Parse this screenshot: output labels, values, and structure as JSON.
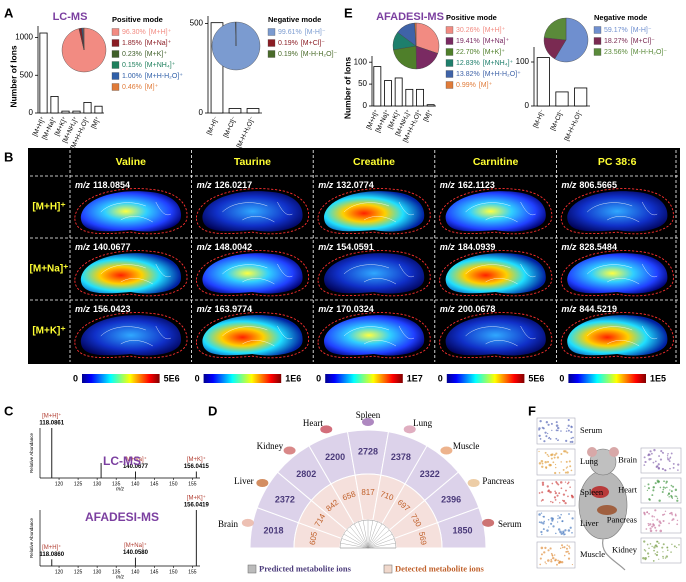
{
  "panel_labels": [
    "A",
    "B",
    "C",
    "D",
    "E",
    "F"
  ],
  "chart_data": [
    {
      "type": "bar",
      "title": "LC-MS",
      "title_color": "#7b3fa0",
      "ylabel": "Number of Ions",
      "legend_title": "Positive mode",
      "categories": [
        "[M+H]⁺",
        "[M+Na]⁺",
        "[M+K]⁺",
        "[M+NH₄]⁺",
        "[M+H-H₂O]⁺",
        "[M]⁺"
      ],
      "values": [
        1060,
        220,
        25,
        25,
        140,
        90
      ],
      "ylim": [
        0,
        1100
      ],
      "yticks": [
        0,
        500,
        1000
      ],
      "bar_color": "#ffffff",
      "shares": [
        96.3,
        1.85,
        0.23,
        0.15,
        1.0,
        0.46
      ],
      "share_labels": [
        "96.30%",
        "1.85%",
        "0.23%",
        "0.15%",
        "1.00%",
        "0.46%"
      ],
      "colors": [
        "#f28b82",
        "#8b1c24",
        "#3f5f2a",
        "#1e7f5c",
        "#2f5fa8",
        "#e07b39"
      ]
    },
    {
      "type": "bar",
      "legend_title": "Negative mode",
      "categories": [
        "[M-H]⁻",
        "[M+Cl]⁻",
        "[M-H-H₂O]⁻"
      ],
      "values": [
        505,
        25,
        25
      ],
      "ylim": [
        0,
        520
      ],
      "yticks": [
        0,
        500
      ],
      "bar_color": "#ffffff",
      "shares": [
        99.61,
        0.19,
        0.19
      ],
      "share_labels": [
        "99.61%",
        "0.19%",
        "0.19%"
      ],
      "colors": [
        "#7b9bd0",
        "#8b1c24",
        "#4a6b2a"
      ]
    },
    {
      "type": "bar",
      "title": "AFADESI-MS",
      "title_color": "#7b3fa0",
      "ylabel": "Number of Ions",
      "legend_title": "Positive mode",
      "categories": [
        "[M+H]⁺",
        "[M+Na]⁺",
        "[M+K]⁺",
        "[M+NH₄]⁺",
        "[M+H-H₂O]⁺",
        "[M]⁺"
      ],
      "values": [
        90,
        58,
        64,
        38,
        38,
        3
      ],
      "ylim": [
        0,
        105
      ],
      "yticks": [
        0,
        50,
        100
      ],
      "bar_color": "#ffffff",
      "shares": [
        30.26,
        19.41,
        22.7,
        12.83,
        13.82,
        0.99
      ],
      "share_labels": [
        "30.26%",
        "19.41%",
        "22.70%",
        "12.83%",
        "13.82%",
        "0.99%"
      ],
      "colors": [
        "#f28b82",
        "#7a2a62",
        "#4f7f2a",
        "#1e7f6c",
        "#3f63a8",
        "#e07b39"
      ]
    },
    {
      "type": "bar",
      "legend_title": "Negative mode",
      "categories": [
        "[M-H]⁻",
        "[M+Cl]⁻",
        "[M-H-H₂O]⁻"
      ],
      "values": [
        110,
        32,
        41
      ],
      "ylim": [
        0,
        125
      ],
      "yticks": [
        0,
        100
      ],
      "bar_color": "#ffffff",
      "shares": [
        59.17,
        18.27,
        23.56
      ],
      "share_labels": [
        "59.17%",
        "18.27%",
        "23.56%"
      ],
      "colors": [
        "#6f8fcf",
        "#7a2a52",
        "#5a8a3a"
      ]
    },
    {
      "type": "stem",
      "title": "LC-MS",
      "title_color": "#7b3fa0",
      "xlabel": "m/z",
      "ylabel": "Relative Abundance",
      "x": [
        118.0861,
        131.04,
        140.0677,
        156.0415
      ],
      "values": [
        100,
        30,
        13,
        13
      ],
      "x_labels": [
        "118.0861",
        null,
        "140.0677",
        "156.0415"
      ],
      "peak_labels": [
        "[M+H]⁺",
        null,
        "[M+Na]⁺",
        "[M+K]⁺"
      ],
      "xlim": [
        115,
        157
      ],
      "xticks": [
        120,
        125,
        130,
        135,
        140,
        145,
        150,
        155
      ],
      "ylim": [
        0,
        100
      ],
      "color": "#222222",
      "label_color": "#b03a2e"
    },
    {
      "type": "stem",
      "title": "AFADESI-MS",
      "title_color": "#7b3fa0",
      "xlabel": "m/z",
      "ylabel": "Relative Abundance",
      "x": [
        118.086,
        140.058,
        156.0419
      ],
      "values": [
        12,
        15,
        100
      ],
      "x_labels": [
        "118.0860",
        "140.0580",
        "156.0419"
      ],
      "peak_labels": [
        "[M+H]⁺",
        "[M+Na]⁺",
        "[M+K]⁺"
      ],
      "xlim": [
        115,
        157
      ],
      "xticks": [
        120,
        125,
        130,
        135,
        140,
        145,
        150,
        155
      ],
      "ylim": [
        0,
        100
      ],
      "color": "#222222",
      "label_color": "#b03a2e"
    }
  ],
  "imaging": {
    "columns": [
      "Valine",
      "Taurine",
      "Creatine",
      "Carnitine",
      "PC 38:6"
    ],
    "rows": [
      "[M+H]⁺",
      "[M+Na]⁺",
      "[M+K]⁺"
    ],
    "mz_prefix": "m/z",
    "mz": [
      [
        "118.0854",
        "126.0217",
        "132.0774",
        "162.1123",
        "806.5665"
      ],
      [
        "140.0677",
        "148.0042",
        "154.0591",
        "184.0939",
        "828.5484"
      ],
      [
        "156.0423",
        "163.9774",
        "170.0324",
        "200.0678",
        "844.5219"
      ]
    ],
    "colorbars": [
      {
        "min": "0",
        "max": "5E6"
      },
      {
        "min": "0",
        "max": "1E6"
      },
      {
        "min": "0",
        "max": "1E7"
      },
      {
        "min": "0",
        "max": "5E6"
      },
      {
        "min": "0",
        "max": "1E5"
      }
    ]
  },
  "fan": {
    "tissues": [
      {
        "name": "Brain",
        "predicted": 2018,
        "detected": 605
      },
      {
        "name": "Liver",
        "predicted": 2372,
        "detected": 714
      },
      {
        "name": "Kidney",
        "predicted": 2802,
        "detected": 842
      },
      {
        "name": "Heart",
        "predicted": 2200,
        "detected": 658
      },
      {
        "name": "Spleen",
        "predicted": 2728,
        "detected": 817
      },
      {
        "name": "Lung",
        "predicted": 2378,
        "detected": 710
      },
      {
        "name": "Muscle",
        "predicted": 2322,
        "detected": 697
      },
      {
        "name": "Pancreas",
        "predicted": 2396,
        "detected": 730
      },
      {
        "name": "Serum",
        "predicted": 1850,
        "detected": 569
      }
    ],
    "legend": [
      "Predicted metabolite ions",
      "Detected metabolite ions"
    ]
  },
  "tissue_images": {
    "left": [
      "Serum",
      "Lung",
      "Spleen",
      "Liver",
      "Muscle"
    ],
    "right": [
      "Brain",
      "Heart",
      "Pancreas",
      "Kidney"
    ]
  }
}
